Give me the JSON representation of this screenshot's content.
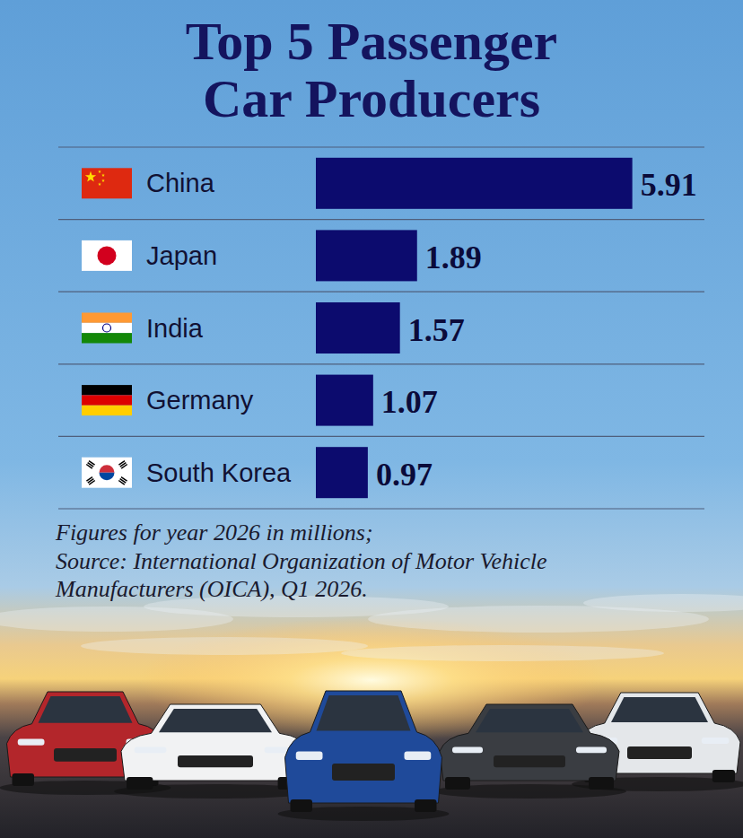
{
  "chart_data": {
    "type": "bar",
    "title": "Top 5 Passenger Car Producers",
    "orientation": "horizontal",
    "categories": [
      "China",
      "Japan",
      "India",
      "Germany",
      "South Korea"
    ],
    "values": [
      5.91,
      1.89,
      1.57,
      1.07,
      0.97
    ],
    "color": "#0c0b6e",
    "xlim": [
      0,
      6
    ],
    "grid": false,
    "data_labels": true,
    "tick_labels": false,
    "note": [
      "Figures for year 2026 in millions;",
      "Source: International Organization of Motor Vehicle",
      "Manufacturers (OICA), Q1 2026."
    ]
  }
}
